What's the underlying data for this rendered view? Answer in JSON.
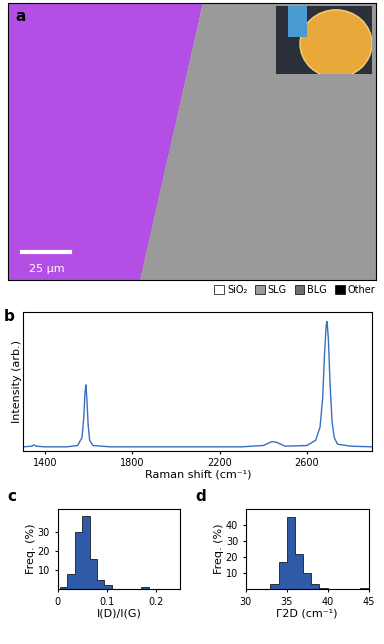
{
  "chart_data": [
    {
      "type": "map",
      "panel": "a",
      "scale_bar": "25 µm",
      "series": [
        {
          "name": "SiO₂",
          "color": "#ffffff"
        },
        {
          "name": "SLG",
          "color": "#9a9a9a"
        },
        {
          "name": "BLG",
          "color": "#6e6e6e"
        },
        {
          "name": "Other",
          "color": "#000000"
        }
      ]
    },
    {
      "type": "line",
      "panel": "b",
      "x": [
        1300,
        1340,
        1350,
        1360,
        1400,
        1500,
        1550,
        1570,
        1578,
        1584,
        1588,
        1592,
        1598,
        1605,
        1620,
        1700,
        1900,
        2100,
        2300,
        2400,
        2440,
        2460,
        2500,
        2600,
        2640,
        2660,
        2672,
        2680,
        2688,
        2692,
        2698,
        2706,
        2715,
        2725,
        2740,
        2800,
        2900
      ],
      "values": [
        0.03,
        0.035,
        0.045,
        0.035,
        0.03,
        0.03,
        0.04,
        0.1,
        0.25,
        0.45,
        0.5,
        0.4,
        0.2,
        0.08,
        0.04,
        0.03,
        0.03,
        0.03,
        0.03,
        0.04,
        0.07,
        0.065,
        0.035,
        0.04,
        0.08,
        0.18,
        0.4,
        0.72,
        0.95,
        0.98,
        0.85,
        0.5,
        0.22,
        0.1,
        0.05,
        0.035,
        0.03
      ],
      "color": "#3b6fc0",
      "x_label": "Raman shift (cm⁻¹)",
      "y_label": "Intensity (arb.)",
      "xlim": [
        1300,
        2900
      ],
      "xticks": [
        1400,
        1800,
        2200,
        2600
      ],
      "ylim": [
        0,
        1.05
      ],
      "tick_labels": "x"
    },
    {
      "type": "histogram",
      "panel": "c",
      "bins": [
        0.005,
        0.02,
        0.035,
        0.05,
        0.065,
        0.08,
        0.095,
        0.11,
        0.125,
        0.14,
        0.155,
        0.17,
        0.185
      ],
      "counts": [
        1,
        8,
        30,
        38,
        16,
        5,
        2,
        0,
        0,
        0,
        0,
        1
      ],
      "color": "#2e5aa8",
      "x_label": "I(D)/I(G)",
      "y_label": "Freq. (%)",
      "xlim": [
        0,
        0.25
      ],
      "xticks": [
        0,
        0.1,
        0.2
      ],
      "ylim": [
        0,
        42
      ],
      "yticks": [
        10,
        20,
        30
      ]
    },
    {
      "type": "histogram",
      "panel": "d",
      "bins": [
        33,
        34,
        35,
        36,
        37,
        38,
        39,
        40,
        41,
        42,
        43,
        44,
        45
      ],
      "counts": [
        3,
        17,
        45,
        22,
        10,
        3,
        1,
        0,
        0,
        0,
        0,
        1
      ],
      "color": "#2e5aa8",
      "x_label": "Γ2D (cm⁻¹)",
      "y_label": "Freq. (%)",
      "xlim": [
        30,
        45
      ],
      "xticks": [
        30,
        35,
        40,
        45
      ],
      "ylim": [
        0,
        50
      ],
      "yticks": [
        10,
        20,
        30,
        40
      ]
    }
  ]
}
